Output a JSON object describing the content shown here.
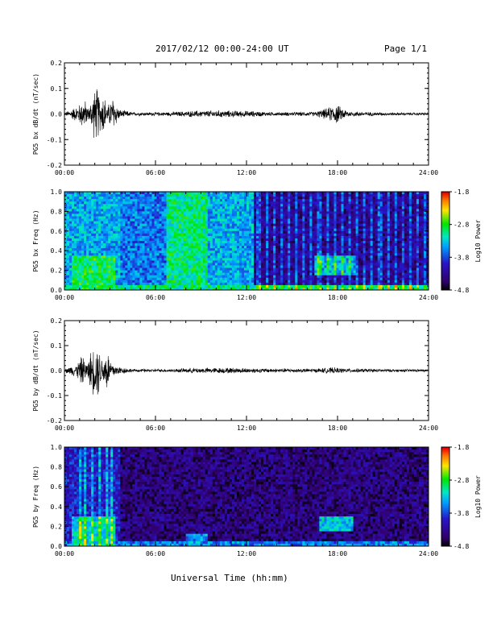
{
  "header": {
    "title": "2017/02/12  00:00-24:00 UT",
    "page": "Page 1/1"
  },
  "xlabel": "Universal Time (hh:mm)",
  "chart_data": [
    {
      "type": "line",
      "ylabel": "PG5 bx dB/dt (nT/sec)",
      "xlim": [
        0,
        24
      ],
      "ylim": [
        -0.2,
        0.2
      ],
      "yticks": [
        "0.2",
        "0.1",
        "0.0",
        "-0.1",
        "-0.2"
      ],
      "xticks": [
        "00:00",
        "06:00",
        "12:00",
        "18:00",
        "24:00"
      ],
      "envelope": [
        {
          "t": 0.0,
          "a": 0.006
        },
        {
          "t": 0.4,
          "a": 0.02
        },
        {
          "t": 0.8,
          "a": 0.035
        },
        {
          "t": 1.0,
          "a": 0.045
        },
        {
          "t": 1.3,
          "a": 0.07
        },
        {
          "t": 1.6,
          "a": 0.025
        },
        {
          "t": 1.9,
          "a": 0.1
        },
        {
          "t": 2.2,
          "a": 0.12
        },
        {
          "t": 2.4,
          "a": 0.06
        },
        {
          "t": 2.6,
          "a": 0.11
        },
        {
          "t": 2.8,
          "a": 0.03
        },
        {
          "t": 3.2,
          "a": 0.08
        },
        {
          "t": 3.6,
          "a": 0.02
        },
        {
          "t": 4.5,
          "a": 0.008
        },
        {
          "t": 6.5,
          "a": 0.008
        },
        {
          "t": 8.5,
          "a": 0.014
        },
        {
          "t": 10.0,
          "a": 0.016
        },
        {
          "t": 12.0,
          "a": 0.014
        },
        {
          "t": 14.0,
          "a": 0.008
        },
        {
          "t": 16.5,
          "a": 0.01
        },
        {
          "t": 17.3,
          "a": 0.025
        },
        {
          "t": 17.9,
          "a": 0.045
        },
        {
          "t": 18.2,
          "a": 0.03
        },
        {
          "t": 18.8,
          "a": 0.012
        },
        {
          "t": 21.0,
          "a": 0.007
        },
        {
          "t": 24.0,
          "a": 0.006
        }
      ]
    },
    {
      "type": "heatmap",
      "ylabel": "PG5 bx Freq (Hz)",
      "xlim": [
        0,
        24
      ],
      "ylim": [
        0,
        1
      ],
      "yticks": [
        "1.0",
        "0.8",
        "0.6",
        "0.4",
        "0.2",
        "0.0"
      ],
      "xticks": [
        "00:00",
        "06:00",
        "12:00",
        "18:00",
        "24:00"
      ],
      "colorbar": {
        "label": "Log10 Power",
        "ticks": [
          "-1.8",
          "-2.8",
          "-3.8",
          "-4.8"
        ],
        "range": [
          -4.8,
          -1.8
        ]
      },
      "regions": [
        {
          "t0": 0,
          "t1": 3.6,
          "f0": 0,
          "f1": 1,
          "level": -3.4
        },
        {
          "t0": 0.5,
          "t1": 3.4,
          "f0": 0,
          "f1": 0.35,
          "level": -2.9
        },
        {
          "t0": 3.6,
          "t1": 6.8,
          "f0": 0,
          "f1": 1,
          "level": -3.6
        },
        {
          "t0": 6.8,
          "t1": 9.4,
          "f0": 0,
          "f1": 1,
          "level": -3.0
        },
        {
          "t0": 9.4,
          "t1": 12.5,
          "f0": 0,
          "f1": 1,
          "level": -3.4
        },
        {
          "t0": 12.5,
          "t1": 24,
          "f0": 0,
          "f1": 1,
          "level": -4.3
        },
        {
          "t0": 16.5,
          "t1": 19.2,
          "f0": 0.15,
          "f1": 0.35,
          "level": -3.4
        },
        {
          "t0": 0,
          "t1": 24,
          "f0": 0,
          "f1": 0.05,
          "level": -3.0
        }
      ],
      "stripes": [
        12.8,
        13.3,
        13.8,
        14.3,
        14.8,
        15.3,
        15.8,
        16.3,
        16.8,
        17.3,
        17.8,
        18.3,
        18.8,
        19.3,
        19.8,
        20.3,
        20.8,
        21.3,
        21.8,
        22.3,
        22.8,
        23.3,
        23.8
      ]
    },
    {
      "type": "line",
      "ylabel": "PG5 by dB/dt (nT/sec)",
      "xlim": [
        0,
        24
      ],
      "ylim": [
        -0.2,
        0.2
      ],
      "yticks": [
        "0.2",
        "0.1",
        "0.0",
        "-0.1",
        "-0.2"
      ],
      "xticks": [
        "00:00",
        "06:00",
        "12:00",
        "18:00",
        "24:00"
      ],
      "envelope": [
        {
          "t": 0.0,
          "a": 0.006
        },
        {
          "t": 0.4,
          "a": 0.02
        },
        {
          "t": 0.8,
          "a": 0.03
        },
        {
          "t": 1.2,
          "a": 0.07
        },
        {
          "t": 1.5,
          "a": 0.03
        },
        {
          "t": 1.8,
          "a": 0.1
        },
        {
          "t": 2.2,
          "a": 0.12
        },
        {
          "t": 2.5,
          "a": 0.05
        },
        {
          "t": 2.8,
          "a": 0.1
        },
        {
          "t": 3.1,
          "a": 0.04
        },
        {
          "t": 3.5,
          "a": 0.02
        },
        {
          "t": 4.5,
          "a": 0.007
        },
        {
          "t": 7.0,
          "a": 0.007
        },
        {
          "t": 8.5,
          "a": 0.012
        },
        {
          "t": 11.0,
          "a": 0.013
        },
        {
          "t": 13.0,
          "a": 0.01
        },
        {
          "t": 16.5,
          "a": 0.009
        },
        {
          "t": 17.6,
          "a": 0.014
        },
        {
          "t": 18.5,
          "a": 0.01
        },
        {
          "t": 21.0,
          "a": 0.007
        },
        {
          "t": 24.0,
          "a": 0.006
        }
      ]
    },
    {
      "type": "heatmap",
      "ylabel": "PG5 by Freq (Hz)",
      "xlim": [
        0,
        24
      ],
      "ylim": [
        0,
        1
      ],
      "yticks": [
        "1.0",
        "0.8",
        "0.6",
        "0.4",
        "0.2",
        "0.0"
      ],
      "xticks": [
        "00:00",
        "06:00",
        "12:00",
        "18:00",
        "24:00"
      ],
      "colorbar": {
        "label": "Log10 Power",
        "ticks": [
          "-1.8",
          "-2.8",
          "-3.8",
          "-4.8"
        ],
        "range": [
          -4.8,
          -1.8
        ]
      },
      "regions": [
        {
          "t0": 0,
          "t1": 24,
          "f0": 0,
          "f1": 1,
          "level": -4.4
        },
        {
          "t0": 0,
          "t1": 3.6,
          "f0": 0,
          "f1": 1,
          "level": -4.0
        },
        {
          "t0": 0.5,
          "t1": 3.4,
          "f0": 0,
          "f1": 0.3,
          "level": -3.2
        },
        {
          "t0": 16.8,
          "t1": 19.0,
          "f0": 0.15,
          "f1": 0.3,
          "level": -3.3
        },
        {
          "t0": 0,
          "t1": 24,
          "f0": 0,
          "f1": 0.06,
          "level": -3.6
        },
        {
          "t0": 8.0,
          "t1": 9.5,
          "f0": 0,
          "f1": 0.12,
          "level": -3.5
        }
      ],
      "stripes": [
        1.1,
        1.4,
        1.9,
        2.3,
        2.8,
        3.1
      ]
    }
  ]
}
